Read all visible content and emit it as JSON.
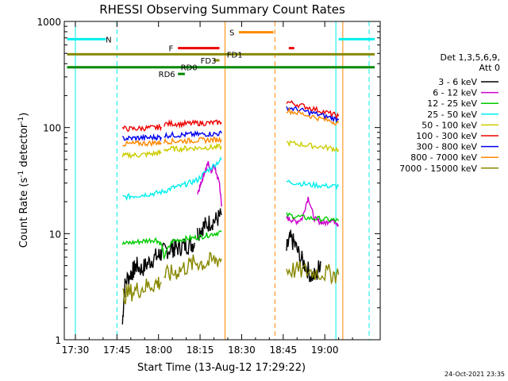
{
  "chart_data": {
    "type": "line",
    "title": "RHESSI Observing Summary Count Rates",
    "xlabel": "Start Time (13-Aug-12 17:29:22)",
    "ylabel_main": "Count Rate (s",
    "ylabel_sup1": "-1",
    "ylabel_mid": " detector",
    "ylabel_sup2": "-1",
    "ylabel_end": ")",
    "yscale": "log",
    "ylim": [
      1,
      1000
    ],
    "xlim_minutes": [
      -4,
      63
    ],
    "x_ticks": [
      {
        "minute": 0,
        "label": "17:30"
      },
      {
        "minute": 15,
        "label": "17:45"
      },
      {
        "minute": 30,
        "label": "18:00"
      },
      {
        "minute": 45,
        "label": "18:15"
      },
      {
        "minute": 60,
        "label": "18:30"
      },
      {
        "minute": 75,
        "label": "18:45"
      },
      {
        "minute": 90,
        "label": "19:00"
      }
    ],
    "y_ticks": [
      {
        "value": 1,
        "label": "1"
      },
      {
        "value": 10,
        "label": "10"
      },
      {
        "value": 100,
        "label": "100"
      },
      {
        "value": 1000,
        "label": "1000"
      }
    ],
    "legend": {
      "position": "right",
      "header1": "Det 1,3,5,6,9,",
      "header2": "Att 0"
    },
    "series": [
      {
        "name": "3 - 6 keV",
        "color": "#000000",
        "segments": [
          {
            "x": [
              17,
              18,
              20,
              21,
              22,
              24,
              26,
              28,
              30,
              31,
              33,
              35,
              36,
              38,
              40,
              42,
              43
            ],
            "y": [
              1.4,
              3.5,
              4.2,
              4.5,
              5.0,
              4.6,
              5.2,
              5.8,
              6.2,
              6.5,
              7.0,
              7.3,
              7.2,
              7.5,
              7.8,
              8.0,
              8.2
            ]
          },
          {
            "x": [
              44,
              45.7,
              47,
              49,
              51,
              52.7
            ],
            "y": [
              10.0,
              11.5,
              12.0,
              13.0,
              13.5,
              15.0
            ]
          },
          {
            "x": [
              76.2,
              77.5,
              79,
              81,
              83,
              85,
              87,
              88.5
            ],
            "y": [
              7.0,
              9.0,
              8.0,
              6.0,
              5.0,
              4.0,
              4.0,
              5.5
            ]
          }
        ]
      },
      {
        "name": "6 - 12 keV",
        "color": "#cc00cc",
        "segments": [
          {
            "x": [
              44,
              45,
              46,
              47,
              48,
              49,
              50,
              51,
              52,
              52.7
            ],
            "y": [
              24,
              28,
              34,
              40,
              46,
              38,
              44,
              36,
              30,
              18
            ]
          },
          {
            "x": [
              76.2,
              78,
              80,
              82,
              84,
              86,
              88,
              90,
              92,
              94,
              95
            ],
            "y": [
              14,
              13.5,
              13,
              14,
              22,
              14,
              13,
              12.5,
              13.5,
              13,
              12
            ]
          }
        ]
      },
      {
        "name": "12 - 25 keV",
        "color": "#00cc00",
        "segments": [
          {
            "x": [
              17,
              20,
              23,
              26,
              29,
              31,
              32,
              35,
              38,
              41,
              44,
              47,
              50,
              52.7
            ],
            "y": [
              8.0,
              8.2,
              8.4,
              8.6,
              8.8,
              8.0,
              6.0,
              8.5,
              8.8,
              9.0,
              9.2,
              9.6,
              10.0,
              10.4
            ]
          },
          {
            "x": [
              76.2,
              80,
              84,
              88,
              92,
              95
            ],
            "y": [
              15,
              14.5,
              14,
              13.8,
              13.5,
              13.2
            ]
          }
        ]
      },
      {
        "name": "25 - 50 keV",
        "color": "#00eeee",
        "segments": [
          {
            "x": [
              17,
              20,
              23,
              26,
              29,
              32,
              35,
              38,
              41,
              44,
              47,
              50,
              52.7
            ],
            "y": [
              22,
              22.5,
              23,
              23.5,
              24,
              25,
              27,
              28,
              30,
              32,
              38,
              44,
              50
            ]
          },
          {
            "x": [
              76.2,
              80,
              84,
              88,
              92,
              95
            ],
            "y": [
              31,
              30,
              29,
              28.5,
              28,
              28
            ]
          }
        ]
      },
      {
        "name": "50 - 100 keV",
        "color": "#cccc00",
        "segments": [
          {
            "x": [
              17,
              20,
              23,
              26,
              29,
              31
            ],
            "y": [
              54,
              55,
              55,
              56,
              57,
              58
            ]
          },
          {
            "x": [
              32,
              35,
              38,
              41,
              44,
              47,
              50,
              52.7
            ],
            "y": [
              62,
              63,
              63,
              64,
              64,
              65,
              65,
              66
            ]
          },
          {
            "x": [
              76.2,
              80,
              84,
              88,
              92,
              95
            ],
            "y": [
              72,
              70,
              68,
              66,
              64,
              62
            ]
          }
        ]
      },
      {
        "name": "100 - 300 keV",
        "color": "#ee0000",
        "segments": [
          {
            "x": [
              17,
              20,
              23,
              26,
              29,
              31
            ],
            "y": [
              98,
              97,
              98,
              99,
              100,
              101
            ]
          },
          {
            "x": [
              32,
              35,
              38,
              41,
              44,
              47,
              50,
              52.7
            ],
            "y": [
              108,
              109,
              108,
              109,
              110,
              110,
              111,
              112
            ]
          },
          {
            "x": [
              76.2,
              80,
              84,
              88,
              92,
              95
            ],
            "y": [
              175,
              165,
              155,
              145,
              135,
              128
            ]
          }
        ]
      },
      {
        "name": "300 - 800 keV",
        "color": "#0000ee",
        "segments": [
          {
            "x": [
              17,
              20,
              23,
              26,
              29,
              31
            ],
            "y": [
              79,
              79,
              80,
              80,
              81,
              81
            ]
          },
          {
            "x": [
              32,
              35,
              38,
              41,
              44,
              47,
              50,
              52.7
            ],
            "y": [
              84,
              85,
              85,
              86,
              86,
              87,
              87,
              88
            ]
          },
          {
            "x": [
              76.2,
              80,
              84,
              88,
              92,
              95
            ],
            "y": [
              155,
              148,
              140,
              132,
              124,
              118
            ]
          }
        ]
      },
      {
        "name": "800 - 7000 keV",
        "color": "#ff8800",
        "segments": [
          {
            "x": [
              17,
              20,
              23,
              26,
              29,
              31
            ],
            "y": [
              70,
              70,
              71,
              71,
              72,
              72
            ]
          },
          {
            "x": [
              32,
              35,
              38,
              41,
              44,
              47,
              50,
              52.7
            ],
            "y": [
              74,
              74,
              75,
              75,
              76,
              76,
              77,
              77
            ]
          },
          {
            "x": [
              76.2,
              80,
              84,
              88,
              92,
              95
            ],
            "y": [
              145,
              138,
              130,
              122,
              115,
              110
            ]
          }
        ]
      },
      {
        "name": "7000 - 15000 keV",
        "color": "#888800",
        "segments": [
          {
            "x": [
              17,
              20,
              23,
              26,
              29,
              31
            ],
            "y": [
              2.6,
              2.8,
              3.0,
              3.2,
              3.4,
              3.5
            ]
          },
          {
            "x": [
              32,
              35,
              38,
              41,
              44,
              47,
              50,
              52.7
            ],
            "y": [
              4.0,
              4.2,
              4.6,
              5.0,
              5.4,
              5.2,
              5.6,
              5.8
            ]
          },
          {
            "x": [
              76.2,
              80,
              84,
              88,
              92,
              95
            ],
            "y": [
              4.6,
              4.5,
              4.4,
              4.3,
              4.2,
              4.1
            ]
          }
        ]
      }
    ],
    "flag_bars": [
      {
        "label": "N",
        "color": "#00eeee",
        "ranges": [
          [
            -3,
            11
          ]
        ],
        "level": 680,
        "label_at": 12
      },
      {
        "label": "N",
        "color": "#00eeee",
        "ranges": [
          [
            95,
            108
          ]
        ],
        "level": 680
      },
      {
        "label": "F",
        "color": "#ee0000",
        "ranges": [
          [
            37,
            52
          ]
        ],
        "level": 560,
        "label_at": 34.5
      },
      {
        "label": "",
        "color": "#ee0000",
        "ranges": [
          [
            77,
            79
          ]
        ],
        "level": 560
      },
      {
        "label": "S",
        "color": "#ff8800",
        "ranges": [
          [
            59,
            71.5
          ]
        ],
        "level": 790,
        "label_at": 56.5
      },
      {
        "label": "FD1",
        "color": "#888800",
        "ranges": [
          [
            -3,
            108
          ]
        ],
        "level": 490,
        "label_at": 57.5
      },
      {
        "label": "FD3",
        "color": "#888800",
        "ranges": [
          [
            50,
            52
          ]
        ],
        "level": 430,
        "label_at": 48
      },
      {
        "label": "RD0",
        "color": "#008800",
        "ranges": [
          [
            -3,
            108
          ]
        ],
        "level": 370,
        "label_at": 41
      },
      {
        "label": "RD6",
        "color": "#008800",
        "ranges": [
          [
            37,
            39.5
          ]
        ],
        "level": 320,
        "label_at": 33
      }
    ],
    "vlines": [
      {
        "minute": 0,
        "color": "#00eeee",
        "style": "solid"
      },
      {
        "minute": 15,
        "color": "#00eeee",
        "style": "dashed"
      },
      {
        "minute": 54,
        "color": "#ff8800",
        "style": "solid"
      },
      {
        "minute": 72,
        "color": "#ff8800",
        "style": "dashed"
      },
      {
        "minute": 94,
        "color": "#00eeee",
        "style": "solid"
      },
      {
        "minute": 96.5,
        "color": "#ff8800",
        "style": "solid"
      },
      {
        "minute": 106,
        "color": "#00eeee",
        "style": "dashed"
      }
    ],
    "timestamp": "24-Oct-2021 23:35"
  }
}
